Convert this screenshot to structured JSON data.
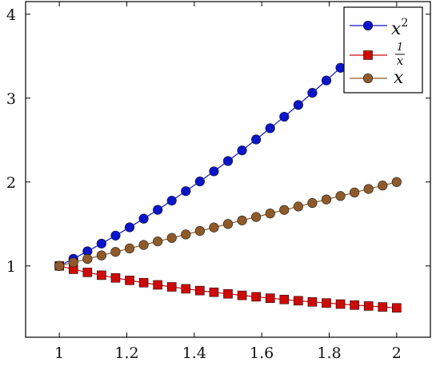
{
  "chart_data": {
    "type": "line",
    "title": "",
    "xlabel": "",
    "ylabel": "",
    "xlim": [
      0.9,
      2.1
    ],
    "ylim": [
      0.15,
      4.15
    ],
    "grid": false,
    "legend_position": "top-right",
    "x_ticks": [
      1,
      1.2,
      1.4,
      1.6,
      1.8,
      2
    ],
    "x_tick_labels": [
      "1",
      "1.2",
      "1.4",
      "1.6",
      "1.8",
      "2"
    ],
    "y_ticks": [
      1,
      2,
      3,
      4
    ],
    "y_tick_labels": [
      "1",
      "2",
      "3",
      "4"
    ],
    "x": [
      1.0,
      1.041667,
      1.083333,
      1.125,
      1.166667,
      1.208333,
      1.25,
      1.291667,
      1.333333,
      1.375,
      1.416667,
      1.458333,
      1.5,
      1.541667,
      1.583333,
      1.625,
      1.666667,
      1.708333,
      1.75,
      1.791667,
      1.833333,
      1.875,
      1.916667,
      1.958333,
      2.0
    ],
    "series": [
      {
        "name": "x^2",
        "color": "#0a14c8",
        "marker": "circle",
        "values": [
          1.0,
          1.085,
          1.174,
          1.266,
          1.361,
          1.46,
          1.563,
          1.668,
          1.778,
          1.891,
          2.007,
          2.127,
          2.25,
          2.377,
          2.507,
          2.641,
          2.778,
          2.918,
          3.063,
          3.21,
          3.361,
          3.516,
          3.674,
          3.835,
          4.0
        ]
      },
      {
        "name": "1/x",
        "color": "#cc0a0a",
        "marker": "square",
        "values": [
          1.0,
          0.96,
          0.923,
          0.889,
          0.857,
          0.828,
          0.8,
          0.774,
          0.75,
          0.727,
          0.706,
          0.686,
          0.667,
          0.649,
          0.632,
          0.615,
          0.6,
          0.585,
          0.571,
          0.558,
          0.545,
          0.533,
          0.522,
          0.511,
          0.5
        ]
      },
      {
        "name": "x",
        "color": "#8f5a2a",
        "marker": "circle",
        "values": [
          1.0,
          1.042,
          1.083,
          1.125,
          1.167,
          1.208,
          1.25,
          1.292,
          1.333,
          1.375,
          1.417,
          1.458,
          1.5,
          1.542,
          1.583,
          1.625,
          1.667,
          1.708,
          1.75,
          1.792,
          1.833,
          1.875,
          1.917,
          1.958,
          2.0
        ]
      }
    ],
    "legend": [
      {
        "base": "x",
        "sup": "2",
        "series": "x^2"
      },
      {
        "num": "1",
        "den": "x",
        "series": "1/x"
      },
      {
        "base": "x",
        "series": "x"
      }
    ]
  }
}
